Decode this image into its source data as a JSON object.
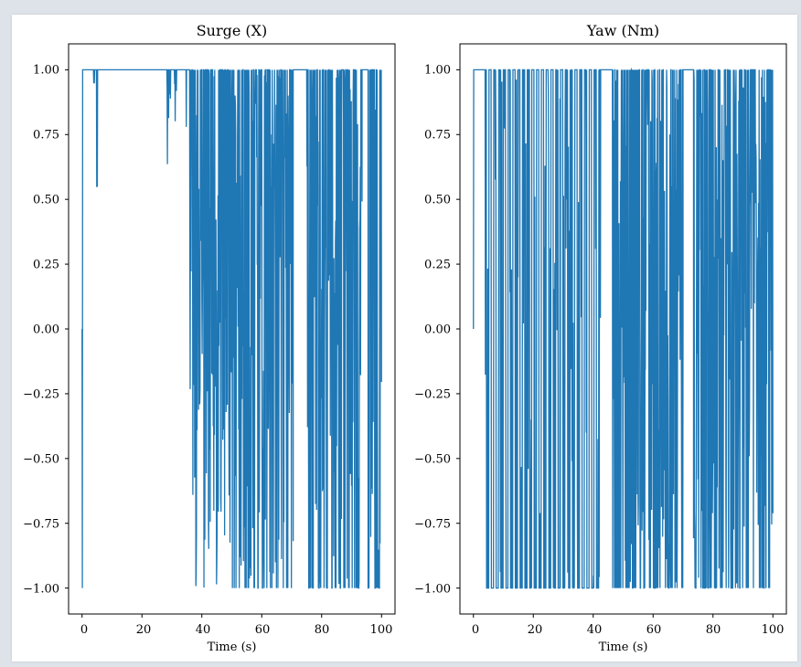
{
  "chart_data": [
    {
      "type": "line",
      "title": "Surge (X)",
      "xlabel": "Time (s)",
      "ylabel": "",
      "xlim": [
        -4.5,
        104.5
      ],
      "ylim": [
        -1.1,
        1.1
      ],
      "xticks": [
        0,
        20,
        40,
        60,
        80,
        100
      ],
      "xtick_labels": [
        "0",
        "20",
        "40",
        "60",
        "80",
        "100"
      ],
      "yticks": [
        1.0,
        0.75,
        0.5,
        0.25,
        0.0,
        -0.25,
        -0.5,
        -0.75,
        -1.0
      ],
      "ytick_labels": [
        "1.00",
        "0.75",
        "0.50",
        "0.25",
        "0.00",
        "−0.25",
        "−0.50",
        "−0.75",
        "−1.00"
      ],
      "series": [
        {
          "name": "Surge (X)",
          "color": "#1f77b4",
          "t_step": 0.1,
          "segments": [
            {
              "from": 0.0,
              "to": 0.3,
              "pattern": "start",
              "values": [
                0.0,
                -1.0,
                1.0
              ]
            },
            {
              "from": 0.3,
              "to": 28.5,
              "pattern": "saturated",
              "high": 1.0,
              "dips": [
                [
                  4.0,
                  0.95
                ],
                [
                  5.0,
                  0.55
                ],
                [
                  28.5,
                  0.93
                ]
              ]
            },
            {
              "from": 28.5,
              "to": 36.0,
              "pattern": "sparse-oscillation",
              "min": 0.63,
              "max": 1.0
            },
            {
              "from": 36.0,
              "to": 44.0,
              "pattern": "oscillation",
              "min": -1.0,
              "max": 1.0
            },
            {
              "from": 44.0,
              "to": 49.5,
              "pattern": "oscillation",
              "min": -1.0,
              "max": 1.0
            },
            {
              "from": 49.5,
              "to": 70.5,
              "pattern": "dense-oscillation",
              "min": -1.0,
              "max": 1.0
            },
            {
              "from": 70.5,
              "to": 75.0,
              "pattern": "saturated",
              "high": 1.0,
              "dips": []
            },
            {
              "from": 75.0,
              "to": 93.5,
              "pattern": "dense-oscillation",
              "min": -1.0,
              "max": 1.0
            },
            {
              "from": 93.5,
              "to": 95.5,
              "pattern": "saturated",
              "high": 1.0,
              "dips": []
            },
            {
              "from": 95.5,
              "to": 100.0,
              "pattern": "dense-oscillation",
              "min": -1.0,
              "max": 1.0
            }
          ]
        }
      ]
    },
    {
      "type": "line",
      "title": "Yaw (Nm)",
      "xlabel": "Time (s)",
      "ylabel": "",
      "xlim": [
        -4.5,
        104.5
      ],
      "ylim": [
        -1.1,
        1.1
      ],
      "xticks": [
        0,
        20,
        40,
        60,
        80,
        100
      ],
      "xtick_labels": [
        "0",
        "20",
        "40",
        "60",
        "80",
        "100"
      ],
      "yticks": [
        1.0,
        0.75,
        0.5,
        0.25,
        0.0,
        -0.25,
        -0.5,
        -0.75,
        -1.0
      ],
      "ytick_labels": [
        "1.00",
        "0.75",
        "0.50",
        "0.25",
        "0.00",
        "−0.25",
        "−0.50",
        "−0.75",
        "−1.00"
      ],
      "series": [
        {
          "name": "Yaw (Nm)",
          "color": "#1f77b4",
          "t_step": 0.1,
          "segments": [
            {
              "from": 0.0,
              "to": 0.3,
              "pattern": "start",
              "values": [
                0.0,
                1.0
              ]
            },
            {
              "from": 0.3,
              "to": 3.5,
              "pattern": "saturated",
              "high": 1.0,
              "dips": []
            },
            {
              "from": 3.5,
              "to": 42.5,
              "pattern": "square-oscillation",
              "min": -1.0,
              "max": 1.0,
              "period": 1.6
            },
            {
              "from": 42.5,
              "to": 46.5,
              "pattern": "saturated",
              "high": 1.0,
              "dips": []
            },
            {
              "from": 46.5,
              "to": 70.0,
              "pattern": "dense-oscillation",
              "min": -1.0,
              "max": 1.0
            },
            {
              "from": 70.0,
              "to": 73.5,
              "pattern": "saturated",
              "high": 1.0,
              "dips": []
            },
            {
              "from": 73.5,
              "to": 100.0,
              "pattern": "dense-oscillation",
              "min": -1.0,
              "max": 1.0
            }
          ]
        }
      ]
    }
  ]
}
